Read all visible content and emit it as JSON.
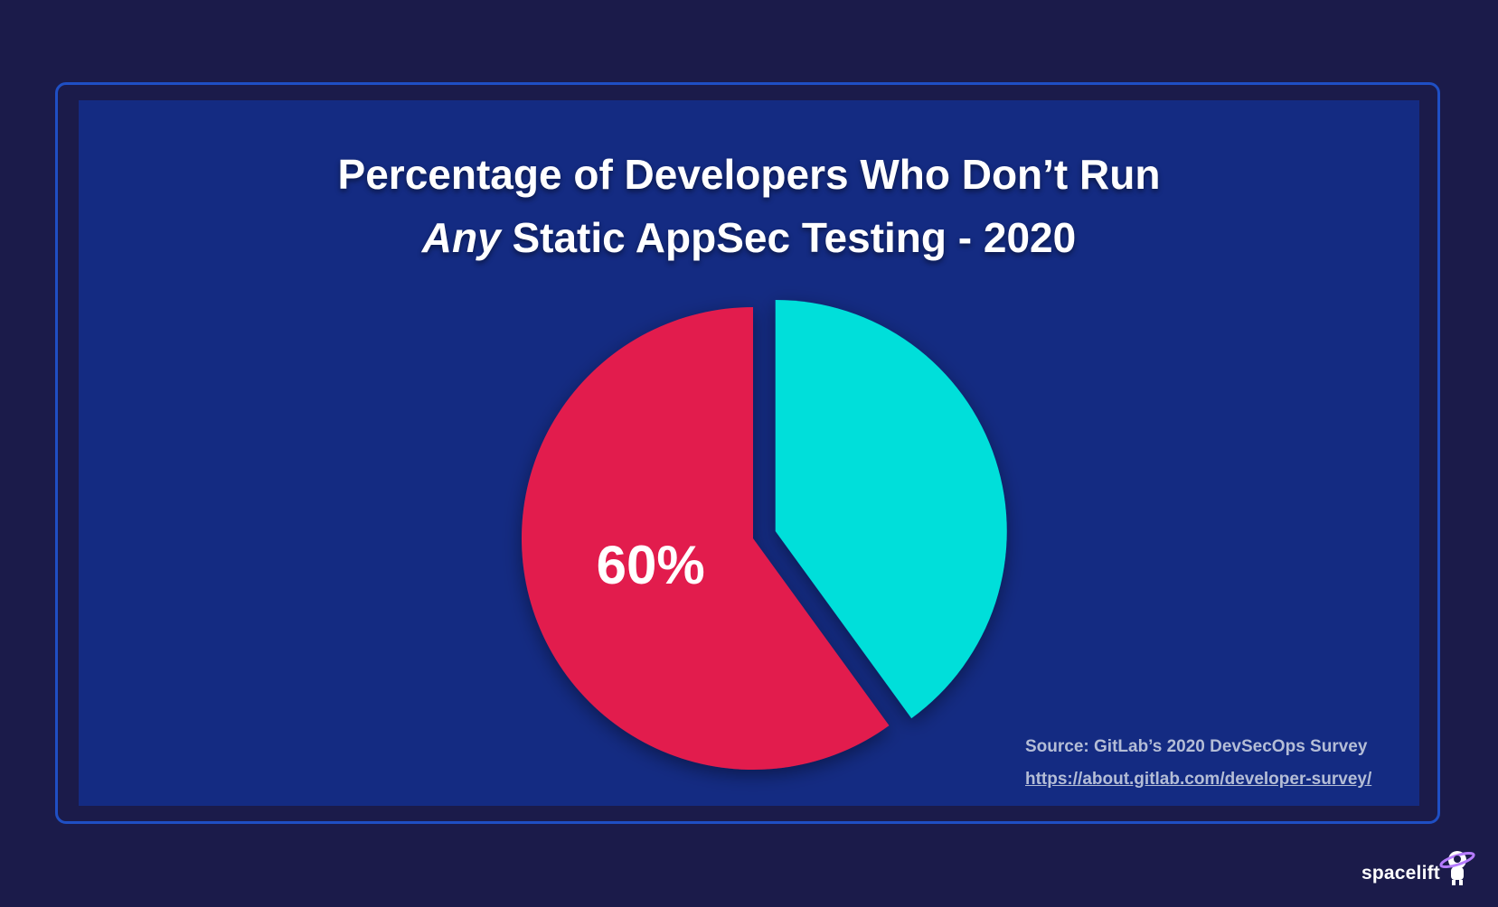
{
  "title": {
    "line1": "Percentage of Developers Who Don’t Run",
    "line2_emphasis": "Any",
    "line2_rest": " Static AppSec Testing - 2020"
  },
  "chart_data": {
    "type": "pie",
    "categories": [
      "",
      ""
    ],
    "values": [
      60,
      40
    ],
    "data_labels": [
      "60%",
      ""
    ],
    "colors": [
      "#e21f4e",
      "#05dfda"
    ],
    "exploded": [
      false,
      true
    ],
    "legend": "none"
  },
  "source": {
    "text": "Source:  GitLab’s 2020 DevSecOps Survey",
    "url_text": "https://about.gitlab.com/developer-survey/"
  },
  "brand": {
    "name": "spacelift",
    "icon": "astronaut-planet-icon"
  },
  "colors": {
    "background": "#1b1b4a",
    "panel": "#142b82",
    "frame": "#1f4fc4",
    "source_text": "#b4bdd6"
  }
}
